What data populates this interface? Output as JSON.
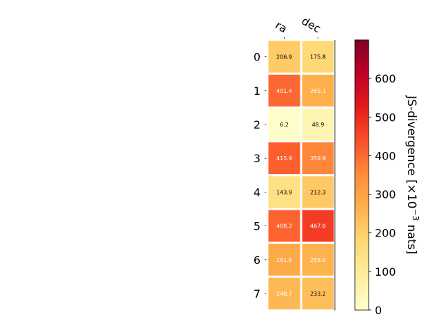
{
  "chart_data": {
    "type": "heatmap",
    "columns": [
      "ra",
      "dec"
    ],
    "rows": [
      "0",
      "1",
      "2",
      "3",
      "4",
      "5",
      "6",
      "7"
    ],
    "values": [
      [
        206.9,
        175.8
      ],
      [
        401.4,
        269.1
      ],
      [
        6.2,
        48.9
      ],
      [
        415.9,
        359.9
      ],
      [
        143.9,
        212.3
      ],
      [
        408.2,
        467.0
      ],
      [
        281.6,
        258.0
      ],
      [
        248.7,
        233.2
      ]
    ],
    "cell_labels": [
      [
        "206.9",
        "175.8"
      ],
      [
        "401.4",
        "269.1"
      ],
      [
        "6.2",
        "48.9"
      ],
      [
        "415.9",
        "359.9"
      ],
      [
        "143.9",
        "212.3"
      ],
      [
        "408.2",
        "467.0"
      ],
      [
        "281.6",
        "258.0"
      ],
      [
        "248.7",
        "233.2"
      ]
    ],
    "colormap": "YlOrRd",
    "vmin": 0,
    "vmax": 700,
    "colorbar": {
      "label_main": "JS-divergence [×10",
      "label_exp": "−3",
      "label_unit": " nats]",
      "ticks": [
        0,
        100,
        200,
        300,
        400,
        500,
        600
      ],
      "tick_labels": [
        "0",
        "100",
        "200",
        "300",
        "400",
        "500",
        "600"
      ]
    },
    "colors": {
      "text_dark": "#000000",
      "text_light": "#ffffff",
      "cell_border": "#ffffff"
    }
  }
}
